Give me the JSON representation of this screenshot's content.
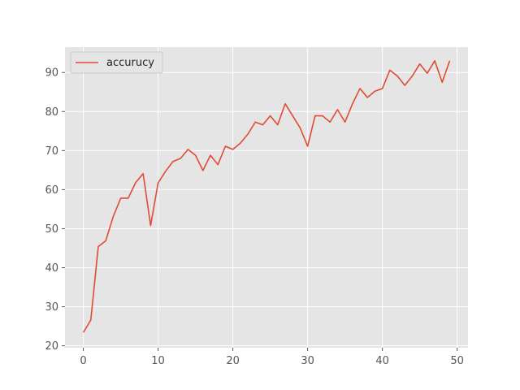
{
  "chart_data": {
    "type": "line",
    "title": "",
    "xlabel": "",
    "ylabel": "",
    "xlim": [
      -2.45,
      51.45
    ],
    "ylim": [
      19.5,
      96.5
    ],
    "xticks": [
      0,
      10,
      20,
      30,
      40,
      50
    ],
    "xtick_labels": [
      "0",
      "10",
      "20",
      "30",
      "40",
      "50"
    ],
    "yticks": [
      20,
      30,
      40,
      50,
      60,
      70,
      80,
      90
    ],
    "ytick_labels": [
      "20",
      "30",
      "40",
      "50",
      "60",
      "70",
      "80",
      "90"
    ],
    "grid": true,
    "legend_position": "upper-left",
    "background_color": "#e5e5e5",
    "grid_color": "#ffffff",
    "series": [
      {
        "name": "accurucy",
        "color": "#e24a33",
        "x": [
          0,
          1,
          2,
          3,
          4,
          5,
          6,
          7,
          8,
          9,
          10,
          11,
          12,
          13,
          14,
          15,
          16,
          17,
          18,
          19,
          20,
          21,
          22,
          23,
          24,
          25,
          26,
          27,
          28,
          29,
          30,
          31,
          32,
          33,
          34,
          35,
          36,
          37,
          38,
          39,
          40,
          41,
          42,
          43,
          44,
          45,
          46,
          47,
          48,
          49
        ],
        "y": [
          23.4,
          26.6,
          45.4,
          46.9,
          53.1,
          57.8,
          57.8,
          61.8,
          64.1,
          50.8,
          61.7,
          64.7,
          67.2,
          68.0,
          70.3,
          68.8,
          64.9,
          68.8,
          66.4,
          71.1,
          70.3,
          71.9,
          74.2,
          77.3,
          76.6,
          78.9,
          76.6,
          82.0,
          78.9,
          75.8,
          71.1,
          78.9,
          78.9,
          77.3,
          80.5,
          77.3,
          82.0,
          85.9,
          83.6,
          85.2,
          85.9,
          90.6,
          89.1,
          86.7,
          89.1,
          92.2,
          89.8,
          93.0,
          87.5,
          93.0
        ]
      }
    ]
  }
}
